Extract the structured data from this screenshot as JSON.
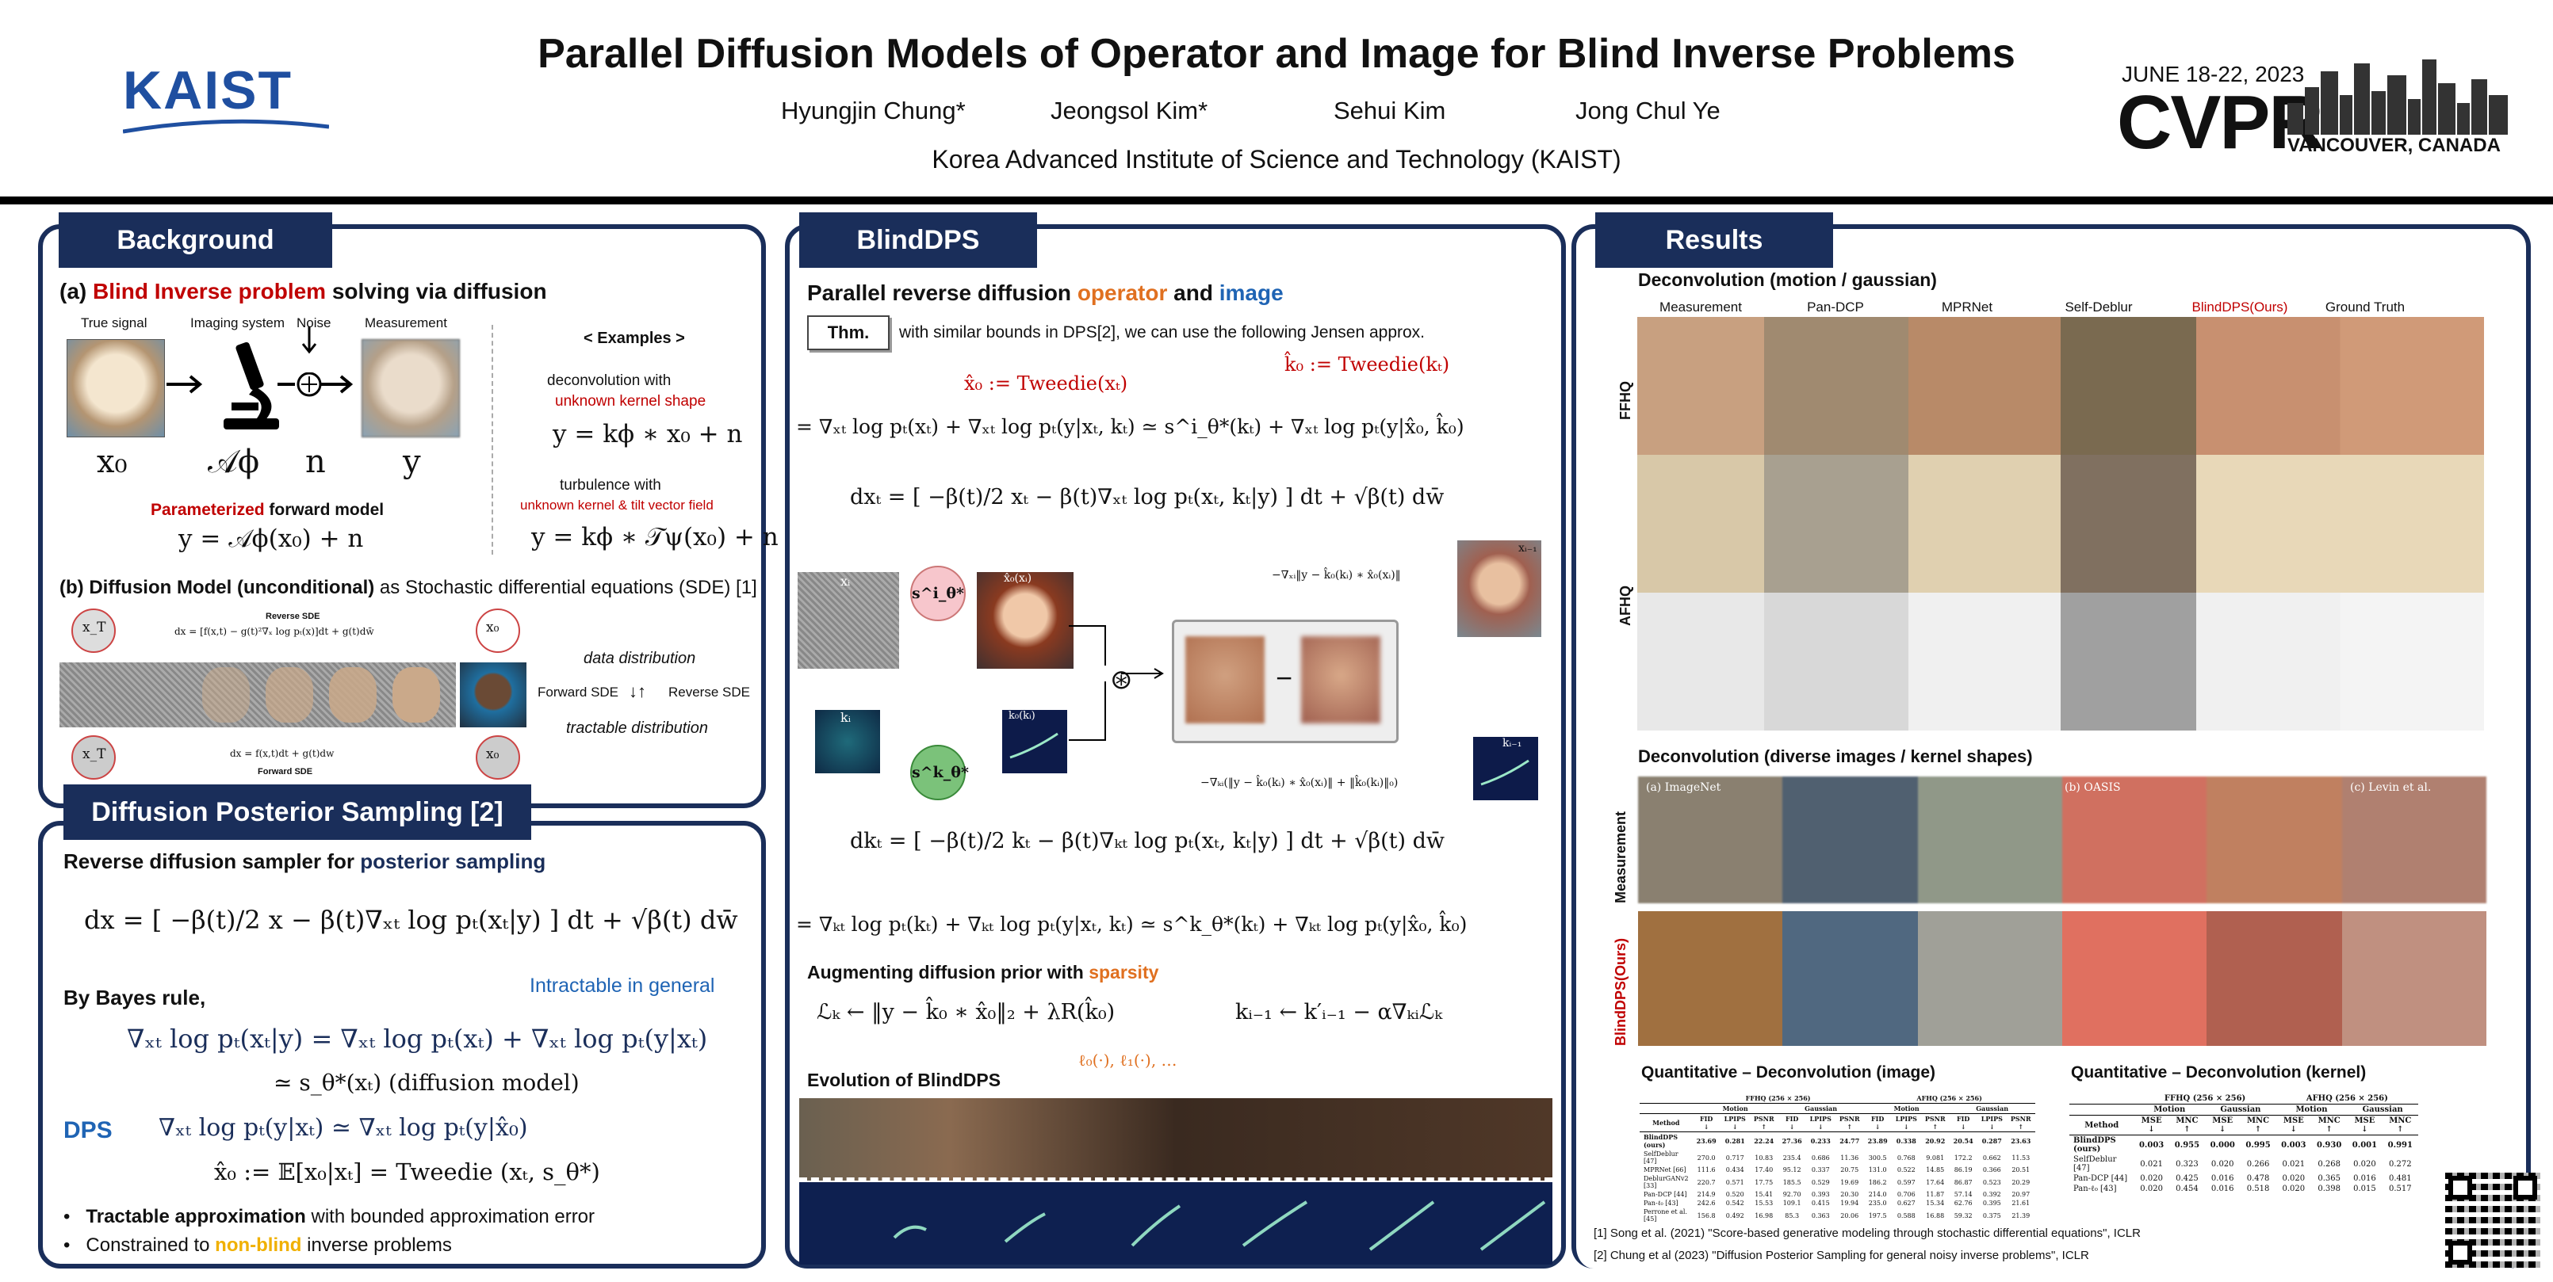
{
  "header": {
    "logo": "KAIST",
    "title": "Parallel Diffusion Models of Operator and Image for Blind Inverse Problems",
    "authors": [
      "Hyungjin Chung*",
      "Jeongsol Kim*",
      "Sehui Kim",
      "Jong Chul Ye"
    ],
    "affiliation": "Korea Advanced Institute of Science and Technology (KAIST)",
    "conf_date": "JUNE 18-22, 2023",
    "conf_name": "CVPR",
    "conf_place": "VANCOUVER, CANADA"
  },
  "background": {
    "header": "Background",
    "a_title_prefix": "(a) ",
    "a_title_red": "Blind Inverse problem",
    "a_title_suffix": " solving via diffusion",
    "labels": [
      "True signal",
      "Imaging system",
      "Noise",
      "Measurement"
    ],
    "symbols": [
      "x₀",
      "𝒜ϕ",
      "n",
      "y"
    ],
    "param_red": "Parameterized",
    "param_rest": " forward model",
    "forward_eq": "y = 𝒜ϕ(x₀) + n",
    "examples_title": "< Examples >",
    "ex1_title": "deconvolution with",
    "ex1_red": "unknown kernel shape",
    "ex1_eq": "y = kϕ ∗ x₀ + n",
    "ex2_title": "turbulence with",
    "ex2_red": "unknown kernel & tilt vector field",
    "ex2_eq": "y = kϕ ∗ 𝒯ψ(x₀) + n",
    "b_title": "(b) Diffusion Model (unconditional)",
    "b_suffix": " as Stochastic differential equations (SDE) [1]",
    "reverse_sde": "Reverse SDE",
    "reverse_eq": "dx = [f(x,t) − g(t)²∇ₓ log pₜ(x)]dt + g(t)dw̄",
    "forward_sde": "Forward SDE",
    "forward_sde_eq": "dx = f(x,t)dt + g(t)dw",
    "xT": "x_T",
    "x0": "x₀",
    "data_dist": "data distribution",
    "fwd_label": "Forward SDE",
    "rev_label": "Reverse SDE",
    "arrows": "↓↑",
    "tract_dist": "tractable distribution"
  },
  "dps": {
    "header": "Diffusion Posterior Sampling [2]",
    "line1_prefix": "Reverse diffusion sampler for ",
    "line1_blue": "posterior sampling",
    "eq1": "dx = [ −β(t)/2 x − β(t)∇ₓₜ log pₜ(xₜ|y) ] dt + √β(t) dw̄",
    "bayes": "By Bayes rule,",
    "intractable": "Intractable in general",
    "eq2": "∇ₓₜ log pₜ(xₜ|y) = ∇ₓₜ log pₜ(xₜ) + ∇ₓₜ log pₜ(y|xₜ)",
    "eq3": "≃ s_θ*(xₜ) (diffusion model)",
    "dps_label": "DPS",
    "eq4": "∇ₓₜ log pₜ(y|xₜ) ≃ ∇ₓₜ log pₜ(y|x̂₀)",
    "eq5": "x̂₀ := 𝔼[x₀|xₜ] = Tweedie (xₜ, s_θ*)",
    "bullet1_bold": "Tractable approximation",
    "bullet1_rest": " with bounded approximation error",
    "bullet2_prefix": "Constrained to ",
    "bullet2_orange": "non-blind",
    "bullet2_suffix": " inverse problems"
  },
  "blinddps": {
    "header": "BlindDPS",
    "subtitle_prefix": "Parallel reverse diffusion ",
    "subtitle_operator": "operator",
    "subtitle_and": " and ",
    "subtitle_image": "image",
    "thm": "Thm.",
    "thm_text": "with similar bounds in DPS[2], we can use the following Jensen approx.",
    "tweedie_x": "x̂₀ := Tweedie(xₜ)",
    "tweedie_k": "k̂₀ := Tweedie(kₜ)",
    "eq_x1": "= ∇ₓₜ log pₜ(xₜ) + ∇ₓₜ log pₜ(y|xₜ, kₜ) ≃ s^i_θ*(kₜ) + ∇ₓₜ log pₜ(y|x̂₀, k̂₀)",
    "eq_x2": "dxₜ = [ −β(t)/2 xₜ − β(t)∇ₓₜ log pₜ(xₜ, kₜ|y) ] dt + √β(t) dw̄",
    "diag_xi": "xᵢ",
    "diag_ki": "kᵢ",
    "diag_s_img": "s^i_θ*",
    "diag_s_k": "s^k_θ*",
    "diag_x0": "x̂₀(xᵢ)",
    "diag_k0": "k̂₀(kᵢ)",
    "diag_conv": "⊛",
    "diag_minus": "−",
    "diag_x_prev": "xᵢ₋₁",
    "diag_k_prev": "kᵢ₋₁",
    "diag_grad_x": "−∇ₓᵢ‖y − k̂₀(kᵢ) ∗ x̂₀(xᵢ)‖",
    "diag_grad_k": "−∇ₖᵢ(‖y − k̂₀(kᵢ) ∗ x̂₀(xᵢ)‖ + ‖k̂₀(kᵢ)‖₀)",
    "eq_k1": "dkₜ = [ −β(t)/2 kₜ − β(t)∇ₖₜ log pₜ(xₜ, kₜ|y) ] dt + √β(t) dw̄",
    "eq_k2": "= ∇ₖₜ log pₜ(kₜ) + ∇ₖₜ log pₜ(y|xₜ, kₜ) ≃ s^k_θ*(kₜ) + ∇ₖₜ log pₜ(y|x̂₀, k̂₀)",
    "aug_prefix": "Augmenting diffusion prior with ",
    "aug_orange": "sparsity",
    "loss_eq": "ℒₖ ← ‖y − k̂₀ ∗ x̂₀‖₂ + λR(k̂₀)",
    "update_eq": "kᵢ₋₁ ← k′ᵢ₋₁ − α∇ₖᵢℒₖ",
    "reg_list": "ℓ₀(·), ℓ₁(·), …",
    "evolution": "Evolution of BlindDPS"
  },
  "results": {
    "header": "Results",
    "sec1": "Deconvolution (motion / gaussian)",
    "columns": [
      "Measurement",
      "Pan-DCP",
      "MPRNet",
      "Self-Deblur",
      "BlindDPS(Ours)",
      "Ground Truth"
    ],
    "row_ffhq": "FFHQ",
    "row_afhq": "AFHQ",
    "sec2": "Deconvolution (diverse images / kernel shapes)",
    "div_labels": [
      "(a) ImageNet",
      "(b) OASIS",
      "(c) Levin et al."
    ],
    "row_meas": "Measurement",
    "row_ours": "BlindDPS(Ours)",
    "quant_img": "Quantitative – Deconvolution (image)",
    "quant_kernel": "Quantitative – Deconvolution (kernel)",
    "tbl_img": {
      "groups": [
        "FFHQ (256 × 256)",
        "AFHQ (256 × 256)"
      ],
      "sub": [
        "Motion",
        "Gaussian",
        "Motion",
        "Gaussian"
      ],
      "cols": [
        "Method",
        "FID ↓",
        "LPIPS ↓",
        "PSNR ↑",
        "FID ↓",
        "LPIPS ↓",
        "PSNR ↑",
        "FID ↓",
        "LPIPS ↓",
        "PSNR ↑",
        "FID ↓",
        "LPIPS ↓",
        "PSNR ↑"
      ],
      "rows": [
        [
          "BlindDPS (ours)",
          "23.69",
          "0.281",
          "22.24",
          "27.36",
          "0.233",
          "24.77",
          "23.89",
          "0.338",
          "20.92",
          "20.54",
          "0.287",
          "23.63"
        ],
        [
          "SelfDeblur [47]",
          "270.0",
          "0.717",
          "10.83",
          "235.4",
          "0.686",
          "11.36",
          "300.5",
          "0.768",
          "9.081",
          "172.2",
          "0.662",
          "11.53"
        ],
        [
          "MPRNet [66]",
          "111.6",
          "0.434",
          "17.40",
          "95.12",
          "0.337",
          "20.75",
          "131.0",
          "0.522",
          "14.85",
          "86.19",
          "0.366",
          "20.51"
        ],
        [
          "DeblurGANv2 [33]",
          "220.7",
          "0.571",
          "17.75",
          "185.5",
          "0.529",
          "19.69",
          "186.2",
          "0.597",
          "17.64",
          "86.87",
          "0.523",
          "20.29"
        ],
        [
          "Pan-DCP [44]",
          "214.9",
          "0.520",
          "15.41",
          "92.70",
          "0.393",
          "20.30",
          "214.0",
          "0.706",
          "11.87",
          "57.14",
          "0.392",
          "20.97"
        ],
        [
          "Pan-ℓ₀ [43]",
          "242.6",
          "0.542",
          "15.53",
          "109.1",
          "0.415",
          "19.94",
          "235.0",
          "0.627",
          "15.34",
          "62.76",
          "0.395",
          "21.61"
        ],
        [
          "Perrone et al. [45]",
          "156.8",
          "0.492",
          "16.98",
          "85.3",
          "0.363",
          "20.06",
          "197.5",
          "0.588",
          "16.88",
          "59.32",
          "0.375",
          "21.39"
        ]
      ]
    },
    "tbl_kernel": {
      "groups": [
        "FFHQ (256 × 256)",
        "AFHQ (256 × 256)"
      ],
      "sub": [
        "Motion",
        "Gaussian",
        "Motion",
        "Gaussian"
      ],
      "cols": [
        "Method",
        "MSE ↓",
        "MNC ↑",
        "MSE ↓",
        "MNC ↑",
        "MSE ↓",
        "MNC ↑",
        "MSE ↓",
        "MNC ↑"
      ],
      "rows": [
        [
          "BlindDPS (ours)",
          "0.003",
          "0.955",
          "0.000",
          "0.995",
          "0.003",
          "0.930",
          "0.001",
          "0.991"
        ],
        [
          "SelfDeblur [47]",
          "0.021",
          "0.323",
          "0.020",
          "0.266",
          "0.021",
          "0.268",
          "0.020",
          "0.272"
        ],
        [
          "Pan-DCP [44]",
          "0.020",
          "0.425",
          "0.016",
          "0.478",
          "0.020",
          "0.365",
          "0.016",
          "0.481"
        ],
        [
          "Pan-ℓ₀ [43]",
          "0.020",
          "0.454",
          "0.016",
          "0.518",
          "0.020",
          "0.398",
          "0.015",
          "0.517"
        ]
      ]
    },
    "ref1": "[1] Song et al. (2021) \"Score-based generative modeling through stochastic differential equations\", ICLR",
    "ref2": "[2] Chung et al (2023) \"Diffusion Posterior Sampling for general noisy inverse problems\", ICLR"
  }
}
